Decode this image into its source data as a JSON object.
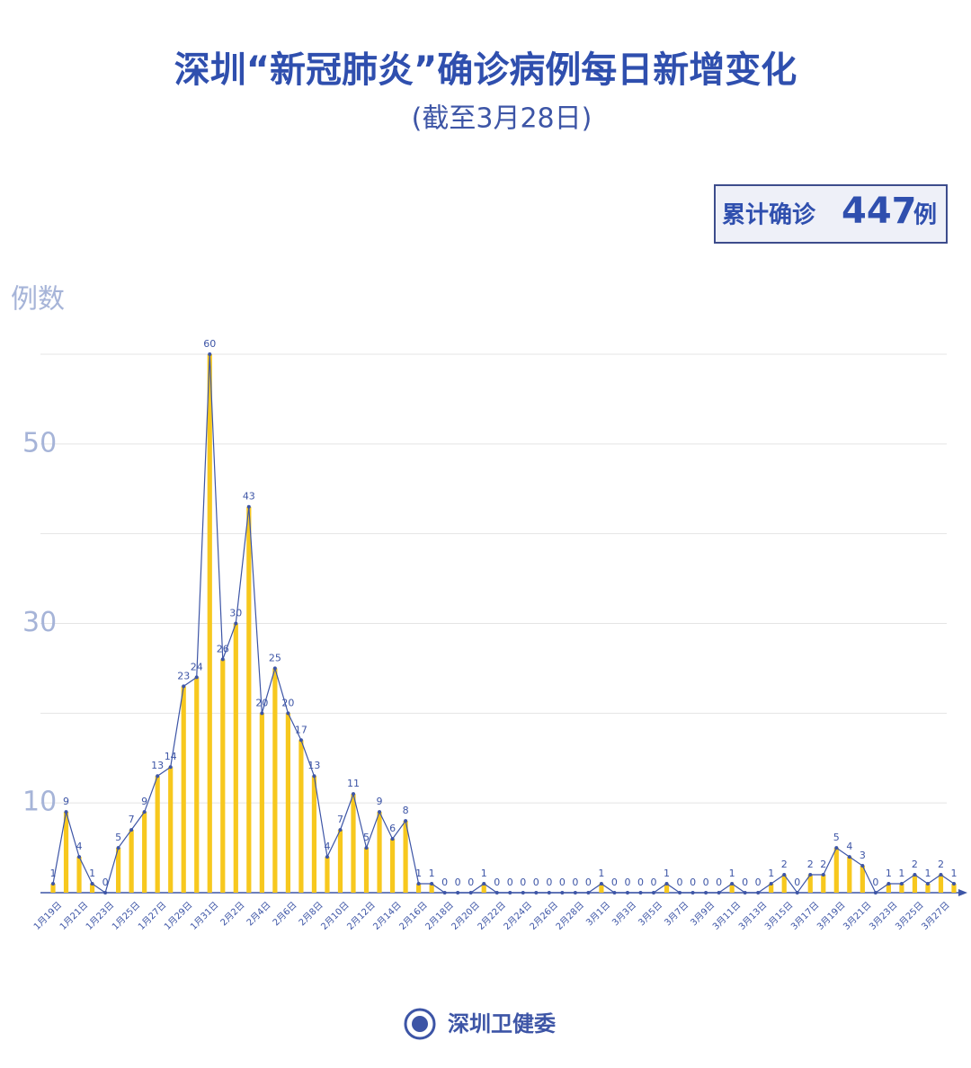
{
  "chart_data": {
    "type": "bar-line",
    "title": "深圳“新冠肺炎”确诊病例每日新增变化",
    "subtitle": "(截至3月28日)",
    "total_label": "累计确诊",
    "total": 447,
    "total_unit": "例",
    "y_label": "例数",
    "footer": "深圳卫健委",
    "categories": [
      "1月19日",
      null,
      "1月21日",
      null,
      "1月23日",
      null,
      "1月25日",
      null,
      "1月27日",
      null,
      "1月29日",
      null,
      "1月31日",
      null,
      "2月2日",
      null,
      "2月4日",
      null,
      "2月6日",
      null,
      "2月8日",
      null,
      "2月10日",
      null,
      "2月12日",
      null,
      "2月14日",
      null,
      "2月16日",
      null,
      "2月18日",
      null,
      "2月20日",
      null,
      "2月22日",
      null,
      "2月24日",
      null,
      "2月26日",
      null,
      "2月28日",
      null,
      "3月1日",
      null,
      "3月3日",
      null,
      "3月5日",
      null,
      "3月7日",
      null,
      "3月9日",
      null,
      "3月11日",
      null,
      "3月13日",
      null,
      "3月15日",
      null,
      "3月17日",
      null,
      "3月19日",
      null,
      "3月21日",
      null,
      "3月23日",
      null,
      "3月25日",
      null,
      "3月27日",
      null
    ],
    "values": [
      1,
      9,
      4,
      1,
      0,
      5,
      7,
      9,
      13,
      14,
      23,
      24,
      60,
      26,
      30,
      43,
      20,
      25,
      20,
      17,
      13,
      4,
      7,
      11,
      5,
      9,
      6,
      8,
      1,
      1,
      0,
      0,
      0,
      1,
      0,
      0,
      0,
      0,
      0,
      0,
      0,
      0,
      1,
      0,
      0,
      0,
      0,
      1,
      0,
      0,
      0,
      0,
      1,
      0,
      0,
      1,
      2,
      0,
      2,
      2,
      5,
      4,
      3,
      0,
      1,
      1,
      2,
      1,
      2,
      1
    ],
    "bar_color": "#f7c81e",
    "line_color": "#3d55a6",
    "ylim": [
      0,
      60
    ],
    "yticks": [
      10,
      30,
      50
    ],
    "ygrid": [
      10,
      20,
      30,
      40,
      50,
      60
    ]
  }
}
